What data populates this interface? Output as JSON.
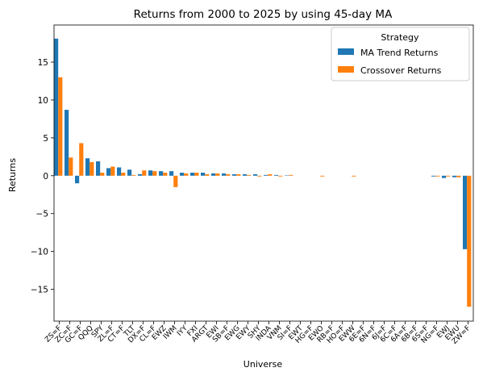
{
  "chart_data": {
    "type": "bar",
    "title": "Returns from 2000 to 2025 by using 45-day MA",
    "xlabel": "Universe",
    "ylabel": "Returns",
    "ylim": [
      -19.2,
      19.9
    ],
    "yticks": [
      -15,
      -10,
      -5,
      0,
      5,
      10,
      15
    ],
    "grid": false,
    "legend": {
      "title": "Strategy",
      "placement": "top-right"
    },
    "categories": [
      "ZS=F",
      "ZC=F",
      "GC=F",
      "QQQ",
      "SPY",
      "ZL=F",
      "CT=F",
      "TLT",
      "DX=F",
      "CL=F",
      "EWZ",
      "IWM",
      "IYY",
      "FXI",
      "ARGT",
      "EWI",
      "SB=F",
      "EWG",
      "EWY",
      "SHY",
      "INDA",
      "VNM",
      "SI=F",
      "EWT",
      "HG=F",
      "EWO",
      "RB=F",
      "HO=F",
      "EWW",
      "6E=F",
      "6N=F",
      "6J=F",
      "6C=F",
      "6A=F",
      "6B=F",
      "6S=F",
      "NG=F",
      "EWJ",
      "EWU",
      "ZW=F"
    ],
    "series": [
      {
        "name": "MA Trend Returns",
        "color": "#1f77b4",
        "values": [
          18.1,
          8.7,
          -1.0,
          2.3,
          1.9,
          1.0,
          1.1,
          0.8,
          0.2,
          0.7,
          0.6,
          0.6,
          0.4,
          0.4,
          0.4,
          0.3,
          0.3,
          0.2,
          0.2,
          0.2,
          0.1,
          0.1,
          0.05,
          0.0,
          0.0,
          0.0,
          0.0,
          0.0,
          0.0,
          0.0,
          0.0,
          0.0,
          0.0,
          0.0,
          0.0,
          0.0,
          -0.1,
          -0.3,
          -0.2,
          -9.7
        ]
      },
      {
        "name": "Crossover Returns",
        "color": "#ff7f0e",
        "values": [
          13.0,
          2.4,
          4.3,
          1.8,
          0.4,
          1.2,
          0.4,
          0.1,
          0.7,
          0.6,
          0.4,
          -1.5,
          0.3,
          0.4,
          0.2,
          0.3,
          0.2,
          0.2,
          0.1,
          -0.1,
          0.2,
          -0.1,
          0.1,
          0.0,
          0.0,
          -0.1,
          0.0,
          0.0,
          -0.1,
          0.0,
          0.0,
          0.0,
          0.0,
          0.0,
          0.0,
          0.0,
          -0.1,
          -0.1,
          -0.2,
          -17.3
        ]
      }
    ]
  }
}
